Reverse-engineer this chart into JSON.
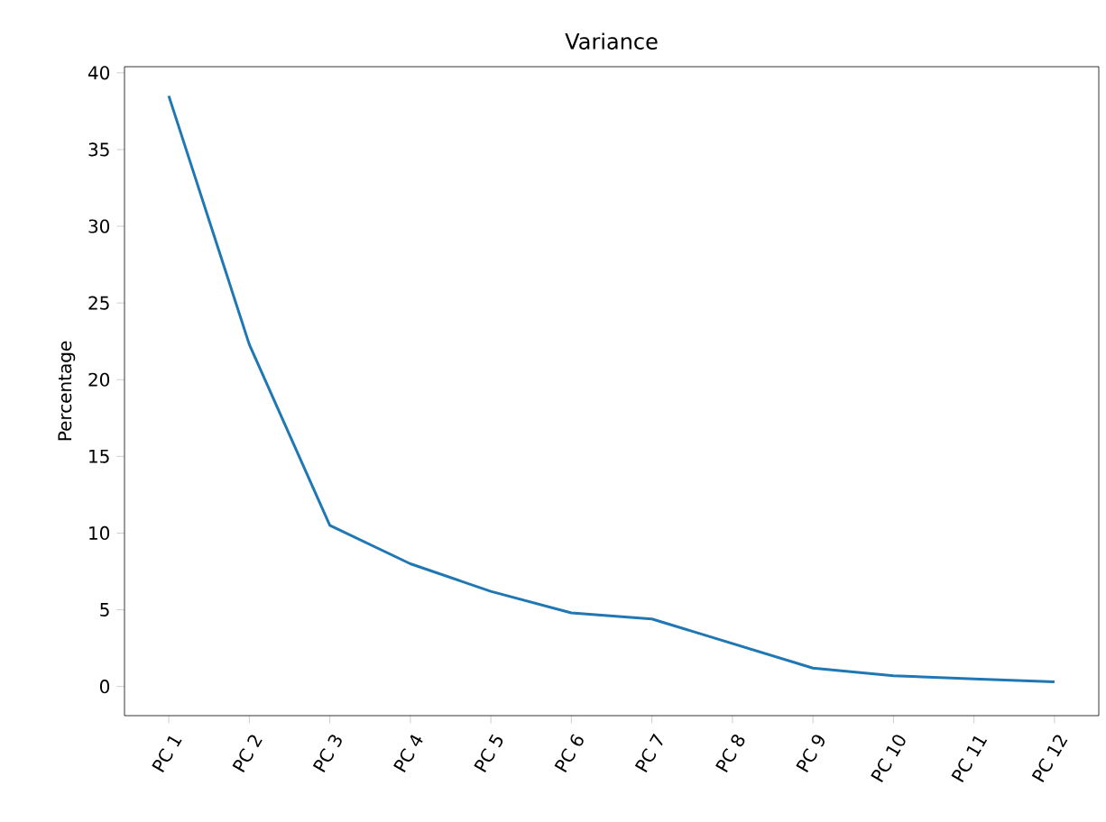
{
  "chart_data": {
    "type": "line",
    "title": "Variance",
    "ylabel": "Percentage",
    "categories": [
      "PC 1",
      "PC 2",
      "PC 3",
      "PC 4",
      "PC 5",
      "PC 6",
      "PC 7",
      "PC 8",
      "PC 9",
      "PC 10",
      "PC 11",
      "PC 12"
    ],
    "series": [
      {
        "color": "#1f77b4",
        "values": [
          38.5,
          22.3,
          10.5,
          8.0,
          6.2,
          4.8,
          4.4,
          2.8,
          1.2,
          0.7,
          0.5,
          0.3
        ]
      }
    ],
    "ylim": [
      -1.9,
      40.4
    ],
    "yticks": [
      0,
      5,
      10,
      15,
      20,
      25,
      30,
      35,
      40
    ],
    "grid": false,
    "marker": "none",
    "line_style": "solid"
  }
}
